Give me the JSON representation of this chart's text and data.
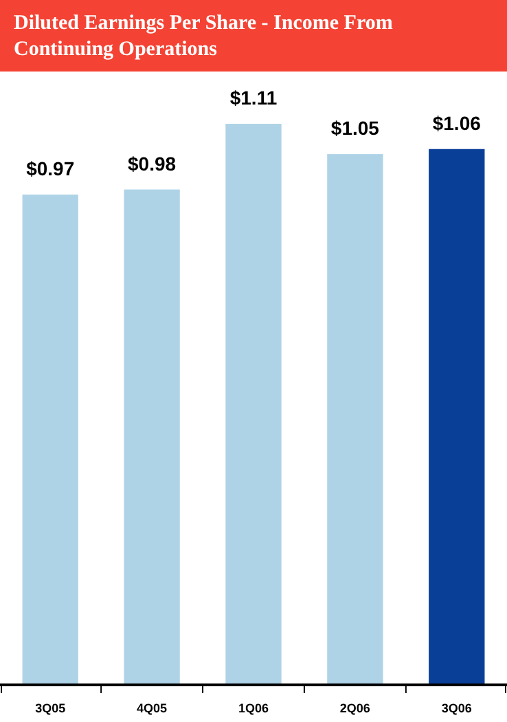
{
  "chart_data": {
    "type": "bar",
    "title": "Diluted Earnings Per Share - Income From Continuing Operations",
    "categories": [
      "3Q05",
      "4Q05",
      "1Q06",
      "2Q06",
      "3Q06"
    ],
    "values": [
      0.97,
      0.98,
      1.11,
      1.05,
      1.06
    ],
    "colors": [
      "#afd3e6",
      "#afd3e6",
      "#afd3e6",
      "#afd3e6",
      "#0a3f98"
    ],
    "value_labels": [
      "$0.97",
      "$0.98",
      "$1.11",
      "$1.05",
      "$1.06"
    ]
  }
}
